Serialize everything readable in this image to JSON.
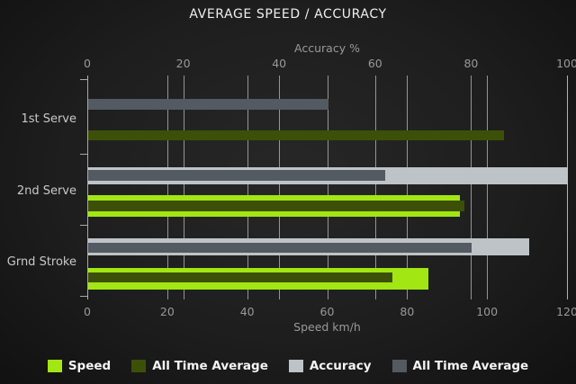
{
  "title": "AVERAGE SPEED / ACCURACY",
  "chart_data": {
    "type": "bar",
    "orientation": "horizontal",
    "title": "AVERAGE SPEED / ACCURACY",
    "categories": [
      "1st Serve",
      "2nd Serve",
      "Grnd Stroke"
    ],
    "top_axis": {
      "label": "Accuracy %",
      "ticks": [
        0,
        20,
        40,
        60,
        80,
        100
      ],
      "min": 0,
      "max": 100
    },
    "bottom_axis": {
      "label": "Speed km/h",
      "ticks": [
        0,
        20,
        40,
        60,
        80,
        100,
        120
      ],
      "min": 0,
      "max": 120
    },
    "series": [
      {
        "name": "Speed",
        "axis": "speed",
        "color": "#a2e613",
        "values": [
          0,
          93,
          85
        ]
      },
      {
        "name": "All Time Average",
        "axis": "speed",
        "color": "#3d5007",
        "values": [
          104,
          94,
          76
        ]
      },
      {
        "name": "Accuracy",
        "axis": "accuracy",
        "color": "#bdc3c6",
        "values": [
          0,
          100,
          92
        ]
      },
      {
        "name": "All Time Average",
        "axis": "accuracy",
        "color": "#545a62",
        "values": [
          50,
          62,
          80
        ]
      }
    ],
    "grid": true,
    "legend_position": "bottom"
  },
  "colors": {
    "background_center": "#272727",
    "background_edge": "#111111",
    "gridline": "#bcbcbc",
    "axis_line": "#a8a8a8",
    "muted_text": "#999999",
    "category_text": "#c9c9c9",
    "title_text": "#efefef",
    "legend_text": "#f4f4f4"
  }
}
